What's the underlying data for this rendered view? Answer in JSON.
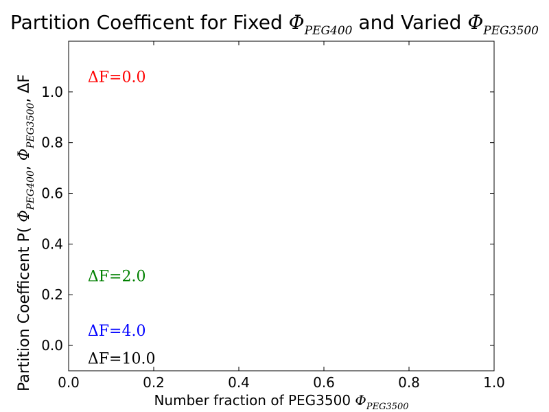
{
  "chart_data": {
    "type": "line",
    "title": {
      "lead": "Partition Coefficent for Fixed ",
      "phi1": "Φ",
      "sub1": "PEG400",
      "mid": " and Varied ",
      "phi2": "Φ",
      "sub2": "PEG3500"
    },
    "xlabel": {
      "text": "Number fraction of PEG3500 ",
      "phi": "Φ",
      "sub": "PEG3500"
    },
    "ylabel": {
      "lead": "Partition Coefficent  P( ",
      "phi1": "Φ",
      "sub1": "PEG400",
      "sep1": ", ",
      "phi2": "Φ",
      "sub2": "PEG3500",
      "sep2": ", ",
      "delta": "ΔF"
    },
    "xlim": [
      0.0,
      1.0
    ],
    "ylim": [
      -0.1,
      1.2
    ],
    "xticks": [
      "0.0",
      "0.2",
      "0.4",
      "0.6",
      "0.8",
      "1.0"
    ],
    "yticks": [
      "0.0",
      "0.2",
      "0.4",
      "0.6",
      "0.8",
      "1.0"
    ],
    "grid": false,
    "series": [
      {
        "name": "ΔF=0.0",
        "color": "#ff0000",
        "values": []
      },
      {
        "name": "ΔF=2.0",
        "color": "#008000",
        "values": []
      },
      {
        "name": "ΔF=4.0",
        "color": "#0000ff",
        "values": []
      },
      {
        "name": "ΔF=10.0",
        "color": "#000000",
        "values": []
      }
    ],
    "annotations": [
      {
        "text": "ΔF=0.0",
        "x": 0.045,
        "y": 1.06,
        "color": "#ff0000"
      },
      {
        "text": "ΔF=2.0",
        "x": 0.045,
        "y": 0.275,
        "color": "#008000"
      },
      {
        "text": "ΔF=4.0",
        "x": 0.045,
        "y": 0.06,
        "color": "#0000ff"
      },
      {
        "text": "ΔF=10.0",
        "x": 0.045,
        "y": -0.05,
        "color": "#000000"
      }
    ]
  }
}
